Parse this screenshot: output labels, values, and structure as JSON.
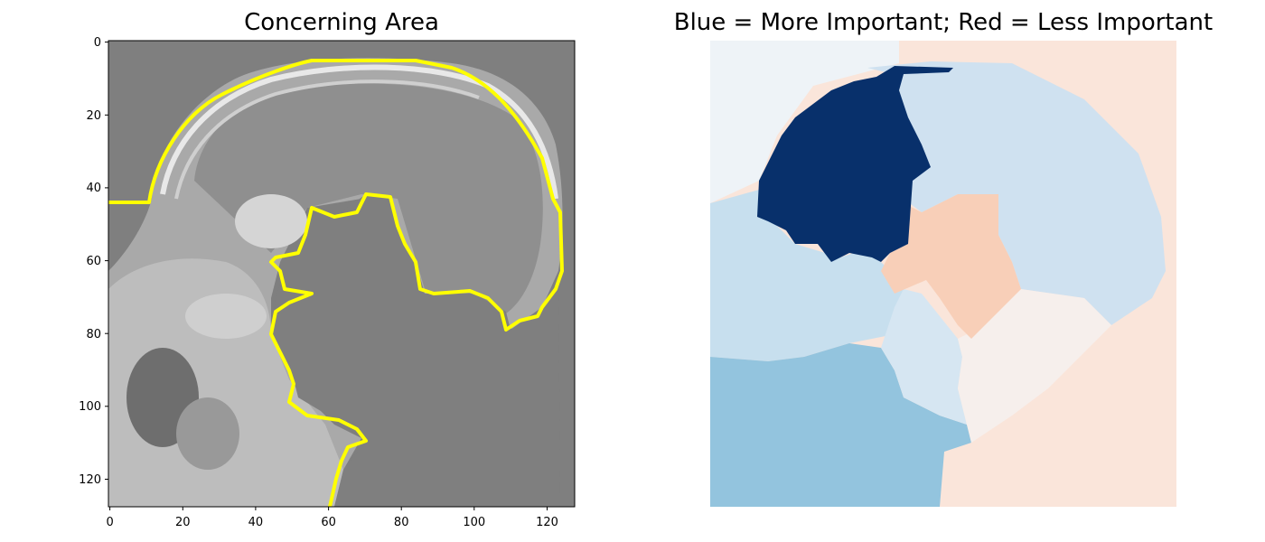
{
  "left_panel": {
    "title": "Concerning Area",
    "x_ticks": [
      "0",
      "20",
      "40",
      "60",
      "80",
      "100",
      "120"
    ],
    "y_ticks": [
      "0",
      "20",
      "40",
      "60",
      "80",
      "100",
      "120"
    ],
    "image_description_colors": {
      "background": "#7f7f7f",
      "boundary": "#ffff00"
    }
  },
  "right_panel": {
    "title": "Blue = More Important; Red = Less Important",
    "colors": {
      "dark_blue": "#08306b",
      "light_blue": "#cfe1f0",
      "mid_blue": "#93c4de",
      "sky_blue": "#c7dfee",
      "pale_blue": "#d6e6f2",
      "near_white": "#eef3f7",
      "salmon": "#f8cfb8",
      "peach": "#fae5da",
      "off_white": "#f6efec"
    }
  }
}
